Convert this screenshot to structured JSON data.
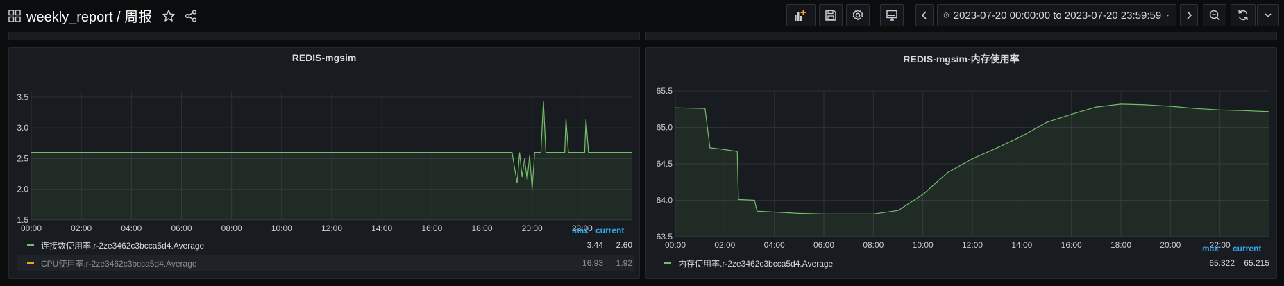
{
  "header": {
    "title": "weekly_report / 周报",
    "time_range": "2023-07-20 00:00:00 to 2023-07-20 23:59:59"
  },
  "panels": [
    {
      "title": "REDIS-mgsim",
      "legend": {
        "max_label": "max",
        "current_label": "current",
        "items": [
          {
            "name": "连接数使用率.r-2ze3462c3bcca5d4.Average",
            "max": "3.44",
            "current": "2.60",
            "color": "#73bf69"
          },
          {
            "name": "CPU使用率.r-2ze3462c3bcca5d4.Average",
            "max": "16.93",
            "current": "1.92",
            "color": "#f2a51a"
          }
        ]
      }
    },
    {
      "title": "REDIS-mgsim-内存使用率",
      "legend": {
        "max_label": "max",
        "current_label": "current",
        "items": [
          {
            "name": "内存使用率.r-2ze3462c3bcca5d4.Average",
            "max": "65.322",
            "current": "65.215",
            "color": "#73bf69"
          }
        ]
      }
    }
  ],
  "chart_data": [
    {
      "type": "area",
      "title": "REDIS-mgsim",
      "x_ticks": [
        "00:00",
        "02:00",
        "04:00",
        "06:00",
        "08:00",
        "10:00",
        "12:00",
        "14:00",
        "16:00",
        "18:00",
        "20:00",
        "22:00"
      ],
      "y_ticks": [
        "1.5",
        "2.0",
        "2.5",
        "3.0",
        "3.5"
      ],
      "ylim": [
        1.5,
        3.6
      ],
      "grid": true,
      "legend_position": "bottom",
      "series": [
        {
          "name": "连接数使用率.r-2ze3462c3bcca5d4.Average",
          "color": "#73bf69",
          "points": [
            [
              0,
              2.6
            ],
            [
              3,
              2.6
            ],
            [
              6,
              2.6
            ],
            [
              9,
              2.6
            ],
            [
              12,
              2.6
            ],
            [
              15,
              2.6
            ],
            [
              18,
              2.6
            ],
            [
              19.2,
              2.6
            ],
            [
              19.3,
              2.35
            ],
            [
              19.4,
              2.1
            ],
            [
              19.5,
              2.6
            ],
            [
              19.6,
              2.2
            ],
            [
              19.7,
              2.5
            ],
            [
              19.8,
              2.15
            ],
            [
              19.9,
              2.55
            ],
            [
              20.0,
              2.0
            ],
            [
              20.1,
              2.6
            ],
            [
              20.35,
              2.6
            ],
            [
              20.45,
              3.44
            ],
            [
              20.55,
              2.6
            ],
            [
              21.3,
              2.6
            ],
            [
              21.35,
              3.15
            ],
            [
              21.45,
              2.6
            ],
            [
              22.1,
              2.6
            ],
            [
              22.15,
              3.15
            ],
            [
              22.25,
              2.6
            ],
            [
              24,
              2.6
            ]
          ]
        }
      ]
    },
    {
      "type": "area",
      "title": "REDIS-mgsim-内存使用率",
      "x_ticks": [
        "00:00",
        "02:00",
        "04:00",
        "06:00",
        "08:00",
        "10:00",
        "12:00",
        "14:00",
        "16:00",
        "18:00",
        "20:00",
        "22:00"
      ],
      "y_ticks": [
        "63.5",
        "64.0",
        "64.5",
        "65.0",
        "65.5"
      ],
      "ylim": [
        63.5,
        65.5
      ],
      "grid": true,
      "legend_position": "bottom",
      "series": [
        {
          "name": "内存使用率.r-2ze3462c3bcca5d4.Average",
          "color": "#73bf69",
          "points": [
            [
              0,
              65.27
            ],
            [
              1.2,
              65.26
            ],
            [
              1.4,
              64.72
            ],
            [
              1.9,
              64.7
            ],
            [
              2.5,
              64.67
            ],
            [
              2.55,
              64.01
            ],
            [
              3.2,
              64.0
            ],
            [
              3.3,
              63.85
            ],
            [
              5,
              63.82
            ],
            [
              6,
              63.81
            ],
            [
              8,
              63.81
            ],
            [
              9,
              63.86
            ],
            [
              10,
              64.08
            ],
            [
              11,
              64.38
            ],
            [
              12,
              64.57
            ],
            [
              13,
              64.72
            ],
            [
              14,
              64.88
            ],
            [
              15,
              65.07
            ],
            [
              16,
              65.18
            ],
            [
              17,
              65.28
            ],
            [
              18,
              65.32
            ],
            [
              19,
              65.31
            ],
            [
              20,
              65.29
            ],
            [
              21,
              65.26
            ],
            [
              22,
              65.24
            ],
            [
              23,
              65.23
            ],
            [
              24,
              65.215
            ]
          ]
        }
      ]
    }
  ]
}
